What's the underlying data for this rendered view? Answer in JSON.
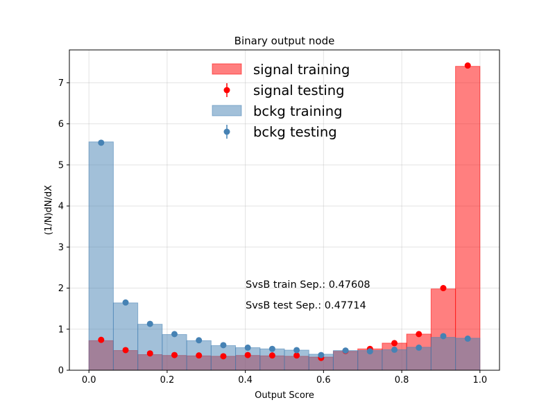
{
  "chart_data": {
    "type": "bar",
    "title": "Binary output node",
    "xlabel": "Output Score",
    "ylabel": "(1/N)dN/dX",
    "xlim": [
      -0.05,
      1.05
    ],
    "ylim": [
      0,
      7.8
    ],
    "xticks": [
      "0.0",
      "0.2",
      "0.4",
      "0.6",
      "0.8",
      "1.0"
    ],
    "yticks": [
      "0",
      "1",
      "2",
      "3",
      "4",
      "5",
      "6",
      "7"
    ],
    "grid": true,
    "legend_position": "top-center",
    "bin_edges": [
      0.0,
      0.0625,
      0.125,
      0.1875,
      0.25,
      0.3125,
      0.375,
      0.4375,
      0.5,
      0.5625,
      0.625,
      0.6875,
      0.75,
      0.8125,
      0.875,
      0.9375,
      1.0
    ],
    "series": [
      {
        "name": "signal training",
        "kind": "hist",
        "color": "#ff0000",
        "alpha": 0.5,
        "values": [
          0.72,
          0.48,
          0.38,
          0.36,
          0.35,
          0.34,
          0.36,
          0.35,
          0.34,
          0.32,
          0.46,
          0.52,
          0.66,
          0.88,
          1.98,
          7.4
        ]
      },
      {
        "name": "signal testing",
        "kind": "points",
        "color": "#ff0000",
        "values": [
          0.74,
          0.49,
          0.41,
          0.37,
          0.36,
          0.34,
          0.37,
          0.36,
          0.36,
          0.3,
          0.47,
          0.52,
          0.66,
          0.88,
          2.0,
          7.42
        ]
      },
      {
        "name": "bckg training",
        "kind": "hist",
        "color": "#4682b4",
        "alpha": 0.5,
        "values": [
          5.56,
          1.64,
          1.12,
          0.87,
          0.72,
          0.6,
          0.55,
          0.52,
          0.49,
          0.39,
          0.48,
          0.48,
          0.5,
          0.56,
          0.8,
          0.78
        ]
      },
      {
        "name": "bckg testing",
        "kind": "points",
        "color": "#4682b4",
        "values": [
          5.54,
          1.65,
          1.13,
          0.88,
          0.73,
          0.61,
          0.55,
          0.52,
          0.49,
          0.37,
          0.48,
          0.46,
          0.5,
          0.55,
          0.83,
          0.77
        ]
      }
    ],
    "annotations": [
      "SvsB train Sep.: 0.47608",
      "SvsB test Sep.: 0.47714"
    ]
  }
}
